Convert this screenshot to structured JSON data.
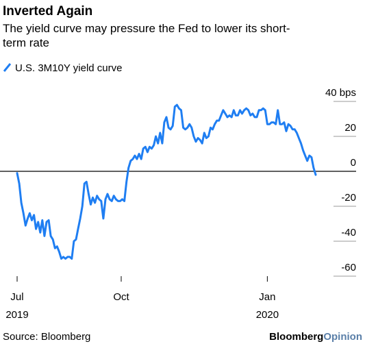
{
  "chart_data": {
    "type": "line",
    "title": "Inverted Again",
    "subtitle": "The yield curve may pressure the Fed to lower its short-term rate",
    "source": "Source: Bloomberg",
    "brand": "Bloomberg",
    "brand_suffix": "Opinion",
    "series": [
      {
        "name": "U.S. 3M10Y yield curve",
        "color": "#1f7ef2",
        "values": [
          -1,
          -7,
          -18,
          -24,
          -31,
          -27,
          -24,
          -28,
          -25,
          -33,
          -29,
          -35,
          -28,
          -37,
          -29,
          -28,
          -37,
          -39,
          -44,
          -43,
          -46,
          -50,
          -49,
          -50,
          -49,
          -49,
          -50,
          -40,
          -39,
          -33,
          -27,
          -20,
          -7,
          -6,
          -13,
          -19,
          -15,
          -18,
          -14,
          -16,
          -17,
          -27,
          -16,
          -13,
          -16,
          -17,
          -14,
          -16,
          -17,
          -17,
          -16,
          -17,
          -6,
          2,
          6,
          7,
          9,
          7,
          10,
          7,
          13,
          14,
          11,
          14,
          13,
          15,
          20,
          16,
          22,
          16,
          28,
          31,
          25,
          24,
          26,
          37,
          38,
          36,
          35,
          25,
          24,
          25,
          27,
          25,
          20,
          17,
          19,
          18,
          16,
          22,
          19,
          20,
          25,
          24,
          27,
          29,
          29,
          32,
          35,
          33,
          31,
          32,
          31,
          35,
          32,
          32,
          35,
          33,
          35,
          36,
          35,
          32,
          33,
          31,
          31,
          35,
          35,
          36,
          35,
          27,
          27,
          28,
          28,
          27,
          35,
          27,
          27,
          28,
          23,
          27,
          26,
          24,
          24,
          22,
          19,
          16,
          12,
          9,
          6,
          9,
          8,
          2,
          -2
        ]
      }
    ],
    "xlim": [
      0,
      142
    ],
    "xticks": [
      {
        "value": 0,
        "label": "Jul"
      },
      {
        "value": 49.5,
        "label": "Oct"
      },
      {
        "value": 119,
        "label": "Jan"
      }
    ],
    "year_labels": [
      {
        "value": 0,
        "label": "2019"
      },
      {
        "value": 119,
        "label": "2020"
      }
    ],
    "ylim": [
      -60,
      40
    ],
    "yticks": [
      {
        "value": 40,
        "label": "40 bps"
      },
      20,
      0,
      -20,
      -40,
      -60
    ],
    "grid": true
  }
}
